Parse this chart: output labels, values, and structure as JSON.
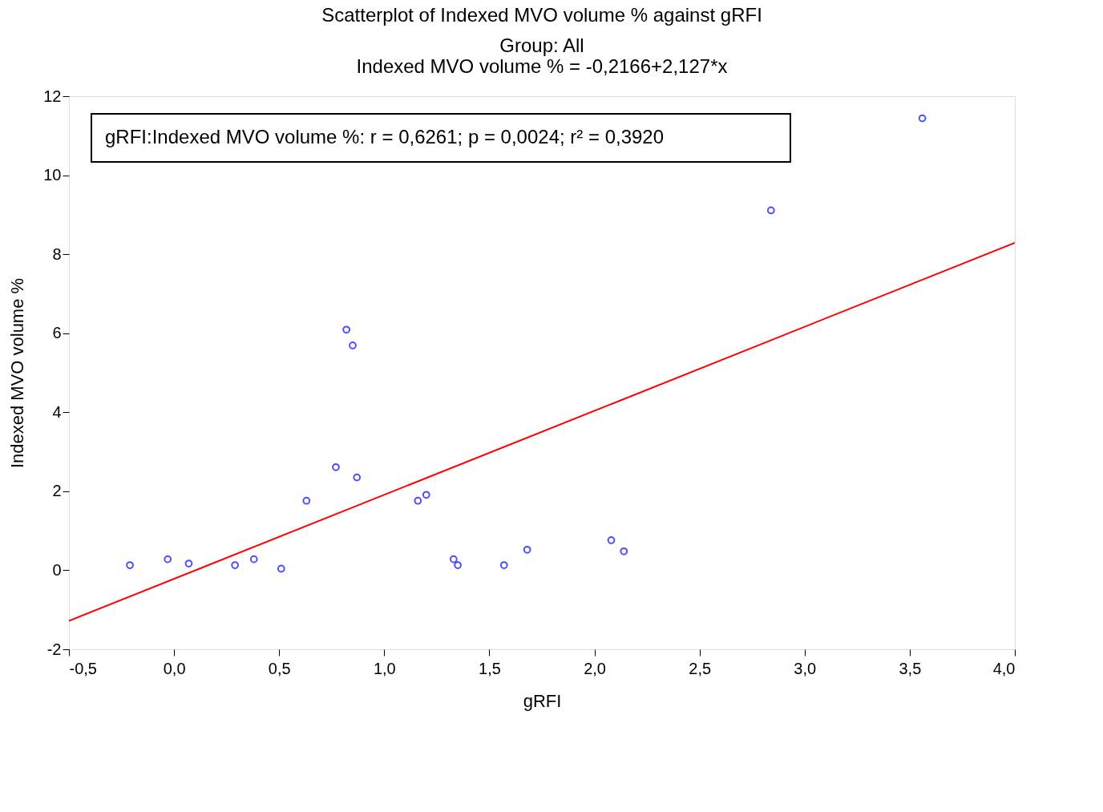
{
  "chart_data": {
    "type": "scatter",
    "title": "Scatterplot of Indexed MVO volume % against gRFI",
    "subtitle": "Group:  All",
    "xlabel": "gRFI",
    "ylabel": "Indexed MVO volume %",
    "annotations": [
      "Indexed MVO volume % = -0,2166+2,127*x",
      "gRFI:Indexed MVO volume %:   r = 0,6261; p = 0,0024; r² = 0,3920"
    ],
    "series": [
      {
        "color": "#0000ff",
        "marker": "circle",
        "x": [
          -0.21,
          -0.03,
          0.07,
          0.29,
          0.38,
          0.51,
          0.63,
          0.77,
          0.82,
          0.85,
          0.87,
          1.16,
          1.2,
          1.33,
          1.35,
          1.57,
          1.68,
          2.08,
          2.14,
          2.84,
          3.56
        ],
        "values": [
          0.13,
          0.28,
          0.17,
          0.13,
          0.28,
          0.04,
          1.76,
          2.61,
          6.09,
          5.69,
          2.35,
          1.76,
          1.91,
          0.28,
          0.13,
          0.13,
          0.52,
          0.76,
          0.48,
          9.11,
          11.44
        ]
      },
      {
        "type": "line",
        "color": "#ff0000",
        "line_style": "solid",
        "x": [
          -0.5,
          4.0
        ],
        "values": [
          -1.28,
          8.29
        ]
      }
    ],
    "xlim": [
      -0.5,
      4.0
    ],
    "ylim": [
      -2,
      12
    ],
    "xticks": [
      {
        "value": -0.5,
        "label": "-0,5"
      },
      {
        "value": 0,
        "label": "0,0"
      },
      {
        "value": 0.5,
        "label": "0,5"
      },
      {
        "value": 1.0,
        "label": "1,0"
      },
      {
        "value": 1.5,
        "label": "1,5"
      },
      {
        "value": 2.0,
        "label": "2,0"
      },
      {
        "value": 2.5,
        "label": "2,5"
      },
      {
        "value": 3.0,
        "label": "3,0"
      },
      {
        "value": 3.5,
        "label": "3,5"
      },
      {
        "value": 4.0,
        "label": "4,0"
      }
    ],
    "yticks": [
      -2,
      0,
      2,
      4,
      6,
      8,
      10,
      12
    ],
    "grid": false
  }
}
